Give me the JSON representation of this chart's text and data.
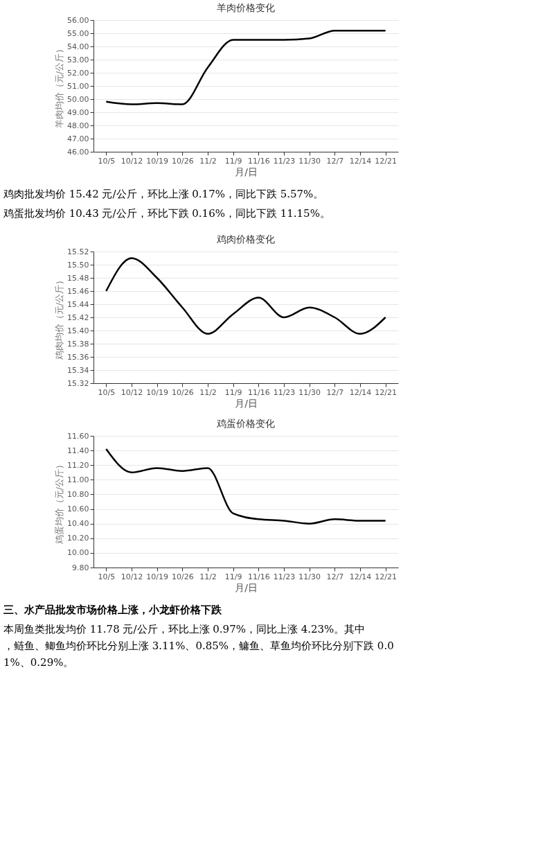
{
  "chart_data": [
    {
      "type": "line",
      "title": "羊肉价格变化",
      "xlabel": "月/日",
      "ylabel": "羊肉均价（元/公斤）",
      "grid": "y",
      "categories": [
        "10/5",
        "10/12",
        "10/19",
        "10/26",
        "11/2",
        "11/9",
        "11/16",
        "11/23",
        "11/30",
        "12/7",
        "12/14",
        "12/21"
      ],
      "series": [
        {
          "color": "#000000",
          "values": [
            49.8,
            49.6,
            49.7,
            49.6,
            52.4,
            54.5,
            54.5,
            54.5,
            54.6,
            55.2,
            55.2,
            55.2
          ]
        }
      ],
      "ylim": [
        46,
        56
      ],
      "yticks": [
        {
          "value": 46,
          "label": "46.00"
        },
        {
          "value": 47,
          "label": "47.00"
        },
        {
          "value": 48,
          "label": "48.00"
        },
        {
          "value": 49,
          "label": "49.00"
        },
        {
          "value": 50,
          "label": "50.00"
        },
        {
          "value": 51,
          "label": "51.00"
        },
        {
          "value": 52,
          "label": "52.00"
        },
        {
          "value": 53,
          "label": "53.00"
        },
        {
          "value": 54,
          "label": "54.00"
        },
        {
          "value": 55,
          "label": "55.00"
        },
        {
          "value": 56,
          "label": "56.00"
        }
      ],
      "annotations": [
        "鸡肉批发均价 15.42 元/公斤，环比上涨 0.17%，同比下跌 5.57%。",
        "鸡蛋批发均价 10.43 元/公斤，环比下跌 0.16%，同比下跌 11.15%。"
      ]
    },
    {
      "type": "line",
      "title": "鸡肉价格变化",
      "xlabel": "月/日",
      "ylabel": "鸡肉均价（元/公斤）",
      "grid": "y",
      "categories": [
        "10/5",
        "10/12",
        "10/19",
        "10/26",
        "11/2",
        "11/9",
        "11/16",
        "11/23",
        "11/30",
        "12/7",
        "12/14",
        "12/21"
      ],
      "series": [
        {
          "color": "#000000",
          "values": [
            15.46,
            15.51,
            15.48,
            15.435,
            15.395,
            15.425,
            15.45,
            15.42,
            15.435,
            15.42,
            15.395,
            15.42
          ]
        }
      ],
      "ylim": [
        15.32,
        15.52
      ],
      "yticks": [
        15.32,
        15.34,
        15.36,
        15.38,
        {
          "value": 15.4,
          "label": "15.40"
        },
        15.42,
        15.44,
        15.46,
        15.48,
        {
          "value": 15.5,
          "label": "15.50"
        },
        15.52
      ]
    },
    {
      "type": "line",
      "title": "鸡蛋价格变化",
      "xlabel": "月/日",
      "ylabel": "鸡蛋均价（元/公斤）",
      "grid": "y",
      "categories": [
        "10/5",
        "10/12",
        "10/19",
        "10/26",
        "11/2",
        "11/9",
        "11/16",
        "11/23",
        "11/30",
        "12/7",
        "12/14",
        "12/21"
      ],
      "series": [
        {
          "color": "#000000",
          "values": [
            11.42,
            11.1,
            11.16,
            11.12,
            11.16,
            10.54,
            10.46,
            10.44,
            10.4,
            10.46,
            10.44,
            10.44
          ]
        }
      ],
      "ylim": [
        9.8,
        11.6
      ],
      "yticks": [
        {
          "value": 9.8,
          "label": "9.80"
        },
        {
          "value": 10,
          "label": "10.00"
        },
        {
          "value": 10.2,
          "label": "10.20"
        },
        {
          "value": 10.4,
          "label": "10.40"
        },
        {
          "value": 10.6,
          "label": "10.60"
        },
        {
          "value": 10.8,
          "label": "10.80"
        },
        {
          "value": 11,
          "label": "11.00"
        },
        {
          "value": 11.2,
          "label": "11.20"
        },
        {
          "value": 11.4,
          "label": "11.40"
        },
        {
          "value": 11.6,
          "label": "11.60"
        }
      ],
      "annotations": [
        "三、水产品批发市场价格上涨，小龙虾价格下跌",
        "本周鱼类批发均价 11.78 元/公斤，环比上涨 0.97%，同比上涨 4.23%。其中，鲢鱼、鲫鱼均价环比分别上涨 3.11%、0.85%，鳙鱼、草鱼均价环比分别下跌 0.01%、0.29%。"
      ]
    }
  ]
}
